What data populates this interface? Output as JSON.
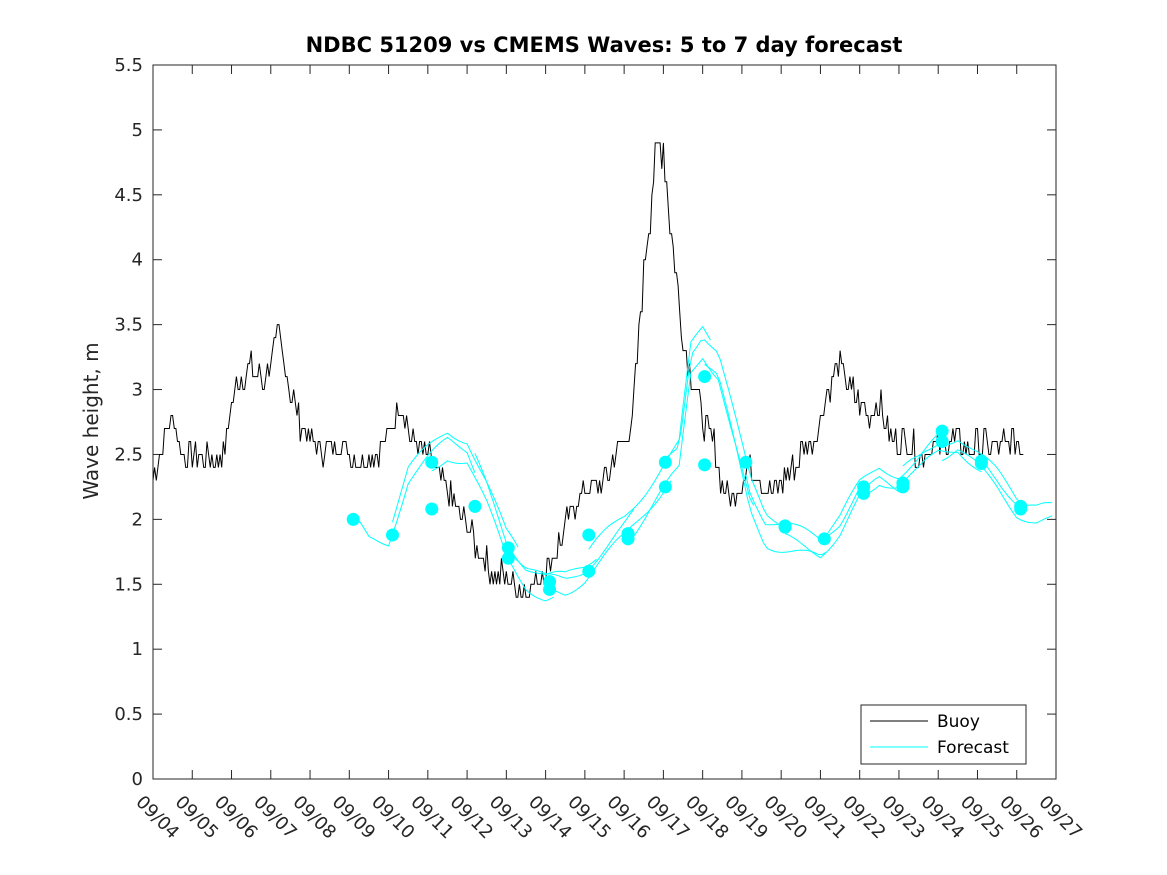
{
  "chart_data": {
    "type": "line",
    "title": "NDBC 51209 vs CMEMS Waves: 5 to 7 day forecast",
    "ylabel": "Wave height, m",
    "xlabel": "",
    "xlim": [
      0,
      23
    ],
    "ylim": [
      0,
      5.5
    ],
    "yticks": [
      0,
      0.5,
      1,
      1.5,
      2,
      2.5,
      3,
      3.5,
      4,
      4.5,
      5,
      5.5
    ],
    "ytick_labels": [
      "0",
      "0.5",
      "1",
      "1.5",
      "2",
      "2.5",
      "3",
      "3.5",
      "4",
      "4.5",
      "5",
      "5.5"
    ],
    "xtick_labels": [
      "09/04",
      "09/05",
      "09/06",
      "09/07",
      "09/08",
      "09/09",
      "09/10",
      "09/11",
      "09/12",
      "09/13",
      "09/14",
      "09/15",
      "09/16",
      "09/17",
      "09/18",
      "09/19",
      "09/20",
      "09/21",
      "09/22",
      "09/23",
      "09/24",
      "09/25",
      "09/26",
      "09/27"
    ],
    "legend": {
      "location": "bottom-right",
      "entries": [
        {
          "label": "Buoy",
          "color": "#000000"
        },
        {
          "label": "Forecast",
          "color": "#00FFFF"
        }
      ]
    },
    "series": [
      {
        "name": "Buoy",
        "color": "#000000",
        "x": [
          0,
          0.5,
          0.8,
          1.2,
          1.5,
          1.8,
          2.0,
          2.2,
          2.5,
          2.8,
          3.2,
          3.5,
          3.8,
          4.2,
          4.5,
          4.8,
          5.2,
          5.5,
          5.8,
          6.0,
          6.3,
          6.6,
          7.0,
          7.3,
          7.6,
          8.0,
          8.3,
          8.6,
          9.0,
          9.3,
          9.5,
          9.8,
          10.2,
          10.5,
          10.8,
          11.2,
          11.5,
          11.8,
          12.2,
          12.5,
          12.8,
          13.0,
          13.2,
          13.5,
          13.8,
          14.0,
          14.1,
          14.3,
          14.5,
          14.8,
          15.2,
          15.5,
          15.8,
          16.2,
          16.5,
          16.8,
          17.2,
          17.5,
          17.8,
          18.2,
          18.5,
          18.8,
          19.2,
          19.5,
          19.8,
          20.2,
          20.5,
          20.8,
          21.2,
          21.5,
          21.8,
          22.2
        ],
        "y": [
          2.35,
          2.8,
          2.45,
          2.5,
          2.45,
          2.5,
          2.9,
          3.1,
          3.2,
          3.05,
          3.4,
          3.0,
          2.7,
          2.55,
          2.55,
          2.6,
          2.45,
          2.5,
          2.55,
          2.65,
          2.9,
          2.6,
          2.5,
          2.35,
          2.15,
          1.95,
          1.75,
          1.6,
          1.55,
          1.5,
          1.45,
          1.55,
          1.7,
          1.95,
          2.15,
          2.25,
          2.3,
          2.5,
          2.7,
          3.9,
          4.8,
          4.9,
          4.2,
          3.4,
          3.0,
          2.8,
          2.7,
          2.6,
          2.25,
          2.2,
          2.4,
          2.3,
          2.2,
          2.35,
          2.5,
          2.6,
          3.0,
          3.2,
          3.0,
          2.8,
          2.9,
          2.6,
          2.6,
          2.5,
          2.55,
          2.6,
          2.6,
          2.55,
          2.6,
          2.55,
          2.6,
          2.55
        ]
      },
      {
        "name": "Forecast",
        "color": "#00FFFF",
        "markers": [
          {
            "x": 5.1,
            "y": 2.0
          },
          {
            "x": 6.1,
            "y": 1.88
          },
          {
            "x": 7.1,
            "y": 2.44
          },
          {
            "x": 7.1,
            "y": 2.08
          },
          {
            "x": 8.2,
            "y": 2.1
          },
          {
            "x": 9.05,
            "y": 1.7
          },
          {
            "x": 9.05,
            "y": 1.78
          },
          {
            "x": 10.1,
            "y": 1.46
          },
          {
            "x": 10.1,
            "y": 1.52
          },
          {
            "x": 11.1,
            "y": 1.6
          },
          {
            "x": 11.1,
            "y": 1.88
          },
          {
            "x": 12.1,
            "y": 1.85
          },
          {
            "x": 12.1,
            "y": 1.89
          },
          {
            "x": 13.05,
            "y": 2.25
          },
          {
            "x": 13.05,
            "y": 2.44
          },
          {
            "x": 14.05,
            "y": 2.42
          },
          {
            "x": 14.05,
            "y": 3.1
          },
          {
            "x": 15.1,
            "y": 2.44
          },
          {
            "x": 16.1,
            "y": 1.94
          },
          {
            "x": 16.1,
            "y": 1.95
          },
          {
            "x": 17.1,
            "y": 1.85
          },
          {
            "x": 18.1,
            "y": 2.2
          },
          {
            "x": 18.1,
            "y": 2.25
          },
          {
            "x": 19.1,
            "y": 2.25
          },
          {
            "x": 19.1,
            "y": 2.28
          },
          {
            "x": 20.1,
            "y": 2.6
          },
          {
            "x": 20.1,
            "y": 2.68
          },
          {
            "x": 21.1,
            "y": 2.43
          },
          {
            "x": 21.1,
            "y": 2.45
          },
          {
            "x": 22.1,
            "y": 2.08
          },
          {
            "x": 22.1,
            "y": 2.1
          }
        ]
      }
    ]
  }
}
